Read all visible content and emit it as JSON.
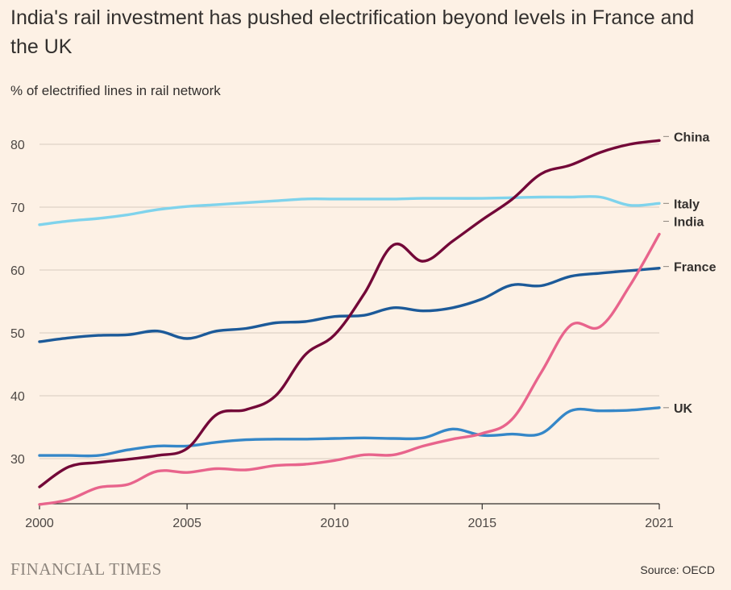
{
  "title": "India's rail investment has pushed electrification beyond levels in France and the UK",
  "subtitle": "% of electrified lines in rail network",
  "brand": "FINANCIAL TIMES",
  "source": "Source: OECD",
  "colors": {
    "background": "#fdf1e5",
    "grid": "#d8ccc0",
    "China": "#730838",
    "Italy": "#7fd3ec",
    "India": "#e8648c",
    "France": "#1c5a99",
    "UK": "#3587c8"
  },
  "chart_data": {
    "type": "line",
    "x": [
      2000,
      2001,
      2002,
      2003,
      2004,
      2005,
      2006,
      2007,
      2008,
      2009,
      2010,
      2011,
      2012,
      2013,
      2014,
      2015,
      2016,
      2017,
      2018,
      2019,
      2020,
      2021
    ],
    "series": [
      {
        "name": "China",
        "values": [
          25.5,
          28.7,
          29.4,
          29.9,
          30.5,
          31.6,
          37.0,
          37.8,
          40.0,
          46.5,
          49.7,
          56.2,
          64.0,
          61.4,
          64.6,
          68.0,
          71.2,
          75.3,
          76.7,
          78.7,
          80.0,
          80.6
        ]
      },
      {
        "name": "Italy",
        "values": [
          67.2,
          67.8,
          68.2,
          68.8,
          69.6,
          70.1,
          70.4,
          70.7,
          71.0,
          71.3,
          71.3,
          71.3,
          71.3,
          71.4,
          71.4,
          71.4,
          71.5,
          71.6,
          71.6,
          71.6,
          70.3,
          70.6
        ]
      },
      {
        "name": "India",
        "values": [
          22.7,
          23.5,
          25.4,
          25.9,
          28.0,
          27.8,
          28.4,
          28.2,
          28.9,
          29.1,
          29.7,
          30.6,
          30.6,
          32.0,
          33.1,
          34.0,
          36.2,
          43.7,
          51.2,
          51.0,
          57.5,
          65.7
        ]
      },
      {
        "name": "France",
        "values": [
          48.6,
          49.2,
          49.6,
          49.7,
          50.3,
          49.1,
          50.3,
          50.7,
          51.6,
          51.8,
          52.6,
          52.8,
          54.0,
          53.5,
          54.0,
          55.4,
          57.6,
          57.5,
          59.0,
          59.5,
          59.9,
          60.3
        ]
      },
      {
        "name": "UK",
        "values": [
          30.5,
          30.5,
          30.5,
          31.4,
          32.0,
          32.0,
          32.6,
          33.0,
          33.1,
          33.1,
          33.2,
          33.3,
          33.2,
          33.3,
          34.7,
          33.7,
          33.9,
          34.0,
          37.6,
          37.6,
          37.7,
          38.1
        ]
      }
    ],
    "ylim": [
      22.5,
      84
    ],
    "yticks": [
      30,
      40,
      50,
      60,
      70,
      80
    ],
    "xticks": [
      2000,
      2005,
      2010,
      2015,
      2021
    ],
    "grid": true,
    "legend": "inline labels at right end of lines"
  }
}
